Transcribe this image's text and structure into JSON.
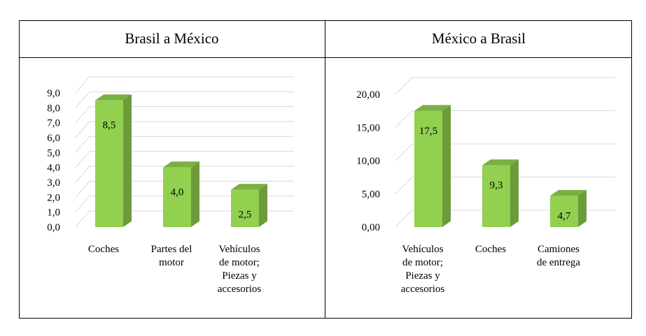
{
  "charts_section": {
    "left_title": "Brasil a México",
    "right_title": "México a Brasil"
  },
  "colors": {
    "bar_front": "#92D050",
    "bar_side": "#6E9B3A",
    "bar_top": "#7AAF42",
    "grid": "#D9D9D9"
  },
  "chart_data": [
    {
      "type": "bar",
      "title": "Brasil a México",
      "categories": [
        [
          "Coches"
        ],
        [
          "Partes del",
          "motor"
        ],
        [
          "Vehículos",
          "de motor;",
          "Piezas y",
          "accesorios"
        ]
      ],
      "values": [
        8.5,
        4.0,
        2.5
      ],
      "value_labels": [
        "8,5",
        "4,0",
        "2,5"
      ],
      "ylim": [
        0,
        9
      ],
      "yticks": [
        "0,0",
        "1,0",
        "2,0",
        "3,0",
        "4,0",
        "5,0",
        "6,0",
        "7,0",
        "8,0",
        "9,0"
      ],
      "grid": true,
      "style": "3d-column"
    },
    {
      "type": "bar",
      "title": "México a Brasil",
      "categories": [
        [
          "Vehículos",
          "de motor;",
          "Piezas y",
          "accesorios"
        ],
        [
          "Coches"
        ],
        [
          "Camiones",
          "de entrega"
        ]
      ],
      "values": [
        17.5,
        9.3,
        4.7
      ],
      "value_labels": [
        "17,5",
        "9,3",
        "4,7"
      ],
      "ylim": [
        0,
        20
      ],
      "yticks": [
        "0,00",
        "5,00",
        "10,00",
        "15,00",
        "20,00"
      ],
      "grid": true,
      "style": "3d-column"
    }
  ]
}
